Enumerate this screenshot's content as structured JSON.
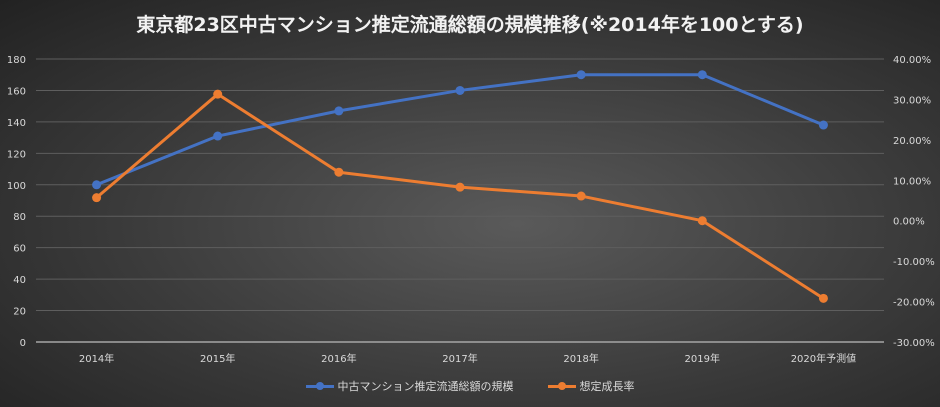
{
  "chart_data": {
    "type": "line",
    "title": "東京都23区中古マンション推定流通総額の規模推移(※2014年を100とする)",
    "categories": [
      "2014年",
      "2015年",
      "2016年",
      "2017年",
      "2018年",
      "2019年",
      "2020年予測値"
    ],
    "y_left": {
      "ylim": [
        0,
        180
      ],
      "ticks": [
        "0",
        "20",
        "40",
        "60",
        "80",
        "100",
        "120",
        "140",
        "160",
        "180"
      ]
    },
    "y_right": {
      "ylim": [
        -0.3,
        0.4
      ],
      "ticks": [
        "-30.00%",
        "-20.00%",
        "-10.00%",
        "0.00%",
        "10.00%",
        "20.00%",
        "30.00%",
        "40.00%"
      ]
    },
    "grid": true,
    "legend_position": "bottom",
    "series": [
      {
        "name": "中古マンション推定流通総額の規模",
        "axis": "left",
        "color": "#4472c4",
        "values": [
          100,
          131,
          147,
          160,
          170,
          170,
          138
        ]
      },
      {
        "name": "想定成長率",
        "axis": "right",
        "color": "#ed7d31",
        "values": [
          0.057,
          0.313,
          0.12,
          0.083,
          0.061,
          0.0,
          -0.192
        ]
      }
    ]
  }
}
